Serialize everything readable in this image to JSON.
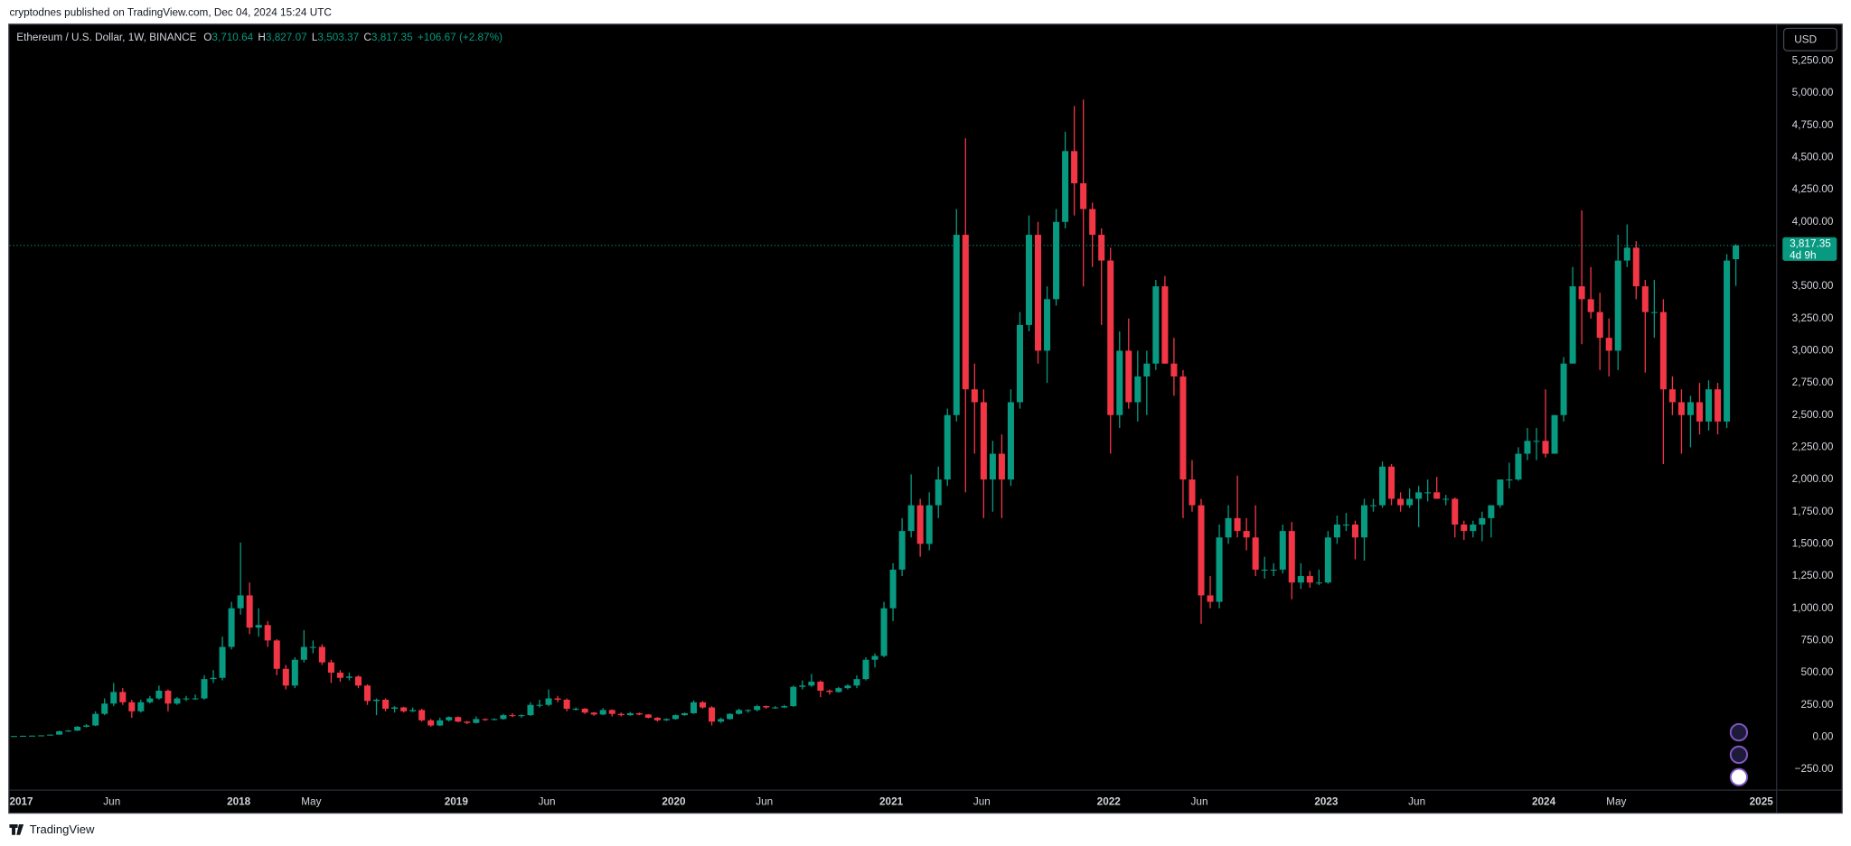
{
  "published": "cryptodnes published on TradingView.com, Dec 04, 2024 15:24 UTC",
  "footer": "TradingView",
  "chart_data": {
    "type": "candlestick",
    "title": "Ethereum / U.S. Dollar, 1W, BINANCE",
    "ohlc_legend": [
      {
        "key": "O",
        "value": "3,710.64"
      },
      {
        "key": "H",
        "value": "3,827.07"
      },
      {
        "key": "L",
        "value": "3,503.37"
      },
      {
        "key": "C",
        "value": "3,817.35"
      }
    ],
    "change": "+106.67 (+2.87%)",
    "currency": "USD",
    "last_price_label": "3,817.35",
    "countdown": "4d 9h",
    "up_color": "#089981",
    "down_color": "#f23645",
    "grid": false,
    "xlim": [
      0,
      195
    ],
    "xticks": [
      {
        "value": 0,
        "label": "2017"
      },
      {
        "value": 10,
        "label": "Jun"
      },
      {
        "value": 24,
        "label": "2018"
      },
      {
        "value": 32,
        "label": "May"
      },
      {
        "value": 48,
        "label": "2019"
      },
      {
        "value": 58,
        "label": "Jun"
      },
      {
        "value": 72,
        "label": "2020"
      },
      {
        "value": 82,
        "label": "Jun"
      },
      {
        "value": 96,
        "label": "2021"
      },
      {
        "value": 106,
        "label": "Jun"
      },
      {
        "value": 120,
        "label": "2022"
      },
      {
        "value": 130,
        "label": "Jun"
      },
      {
        "value": 144,
        "label": "2023"
      },
      {
        "value": 154,
        "label": "Jun"
      },
      {
        "value": 168,
        "label": "2024"
      },
      {
        "value": 176,
        "label": "May"
      },
      {
        "value": 192,
        "label": "2025"
      }
    ],
    "ylim": [
      -595,
      5540
    ],
    "yticks": [
      {
        "value": -250,
        "label": "−250.00"
      },
      {
        "value": 0,
        "label": "0.00"
      },
      {
        "value": 250,
        "label": "250.00"
      },
      {
        "value": 500,
        "label": "500.00"
      },
      {
        "value": 750,
        "label": "750.00"
      },
      {
        "value": 1000,
        "label": "1,000.00"
      },
      {
        "value": 1250,
        "label": "1,250.00"
      },
      {
        "value": 1500,
        "label": "1,500.00"
      },
      {
        "value": 1750,
        "label": "1,750.00"
      },
      {
        "value": 2000,
        "label": "2,000.00"
      },
      {
        "value": 2250,
        "label": "2,250.00"
      },
      {
        "value": 2500,
        "label": "2,500.00"
      },
      {
        "value": 2750,
        "label": "2,750.00"
      },
      {
        "value": 3000,
        "label": "3,000.00"
      },
      {
        "value": 3250,
        "label": "3,250.00"
      },
      {
        "value": 3500,
        "label": "3,500.00"
      },
      {
        "value": 3750,
        "label": "3,750.00"
      },
      {
        "value": 4000,
        "label": "4,000.00"
      },
      {
        "value": 4250,
        "label": "4,250.00"
      },
      {
        "value": 4500,
        "label": "4,500.00"
      },
      {
        "value": 4750,
        "label": "4,750.00"
      },
      {
        "value": 5000,
        "label": "5,000.00"
      },
      {
        "value": 5250,
        "label": "5,250.00"
      }
    ],
    "ohlc": [
      [
        8,
        9,
        7,
        8
      ],
      [
        8,
        10,
        8,
        10
      ],
      [
        10,
        12,
        10,
        11
      ],
      [
        11,
        14,
        11,
        13
      ],
      [
        13,
        20,
        12,
        19
      ],
      [
        19,
        50,
        18,
        45
      ],
      [
        45,
        55,
        40,
        50
      ],
      [
        50,
        85,
        47,
        80
      ],
      [
        80,
        100,
        75,
        90
      ],
      [
        90,
        200,
        85,
        180
      ],
      [
        180,
        300,
        170,
        260
      ],
      [
        260,
        420,
        240,
        350
      ],
      [
        350,
        380,
        250,
        270
      ],
      [
        270,
        290,
        150,
        200
      ],
      [
        200,
        290,
        190,
        270
      ],
      [
        270,
        320,
        260,
        300
      ],
      [
        300,
        400,
        290,
        360
      ],
      [
        360,
        370,
        200,
        260
      ],
      [
        260,
        310,
        250,
        300
      ],
      [
        300,
        320,
        280,
        300
      ],
      [
        300,
        330,
        290,
        300
      ],
      [
        300,
        480,
        290,
        450
      ],
      [
        450,
        520,
        420,
        460
      ],
      [
        460,
        780,
        440,
        700
      ],
      [
        700,
        1050,
        680,
        1000
      ],
      [
        1000,
        1510,
        950,
        1100
      ],
      [
        1100,
        1200,
        800,
        850
      ],
      [
        850,
        1000,
        780,
        870
      ],
      [
        870,
        900,
        700,
        750
      ],
      [
        750,
        760,
        480,
        530
      ],
      [
        530,
        560,
        370,
        400
      ],
      [
        400,
        620,
        380,
        600
      ],
      [
        600,
        830,
        580,
        700
      ],
      [
        700,
        750,
        650,
        700
      ],
      [
        700,
        720,
        560,
        580
      ],
      [
        580,
        600,
        420,
        500
      ],
      [
        500,
        520,
        430,
        460
      ],
      [
        460,
        500,
        440,
        470
      ],
      [
        470,
        480,
        380,
        400
      ],
      [
        400,
        410,
        250,
        280
      ],
      [
        280,
        300,
        170,
        290
      ],
      [
        290,
        300,
        200,
        220
      ],
      [
        220,
        240,
        190,
        230
      ],
      [
        230,
        235,
        190,
        200
      ],
      [
        200,
        230,
        195,
        210
      ],
      [
        210,
        220,
        120,
        130
      ],
      [
        130,
        140,
        80,
        90
      ],
      [
        90,
        150,
        85,
        130
      ],
      [
        130,
        160,
        120,
        155
      ],
      [
        155,
        160,
        115,
        120
      ],
      [
        120,
        125,
        100,
        110
      ],
      [
        110,
        160,
        105,
        140
      ],
      [
        140,
        145,
        125,
        135
      ],
      [
        135,
        145,
        130,
        140
      ],
      [
        140,
        180,
        135,
        170
      ],
      [
        170,
        185,
        155,
        165
      ],
      [
        165,
        175,
        150,
        170
      ],
      [
        170,
        270,
        165,
        250
      ],
      [
        250,
        290,
        230,
        250
      ],
      [
        250,
        370,
        240,
        300
      ],
      [
        300,
        320,
        270,
        290
      ],
      [
        290,
        300,
        200,
        220
      ],
      [
        220,
        230,
        205,
        220
      ],
      [
        220,
        225,
        180,
        190
      ],
      [
        190,
        195,
        165,
        175
      ],
      [
        175,
        225,
        170,
        210
      ],
      [
        210,
        215,
        160,
        180
      ],
      [
        180,
        190,
        160,
        170
      ],
      [
        170,
        195,
        165,
        185
      ],
      [
        185,
        190,
        170,
        175
      ],
      [
        175,
        178,
        145,
        150
      ],
      [
        150,
        155,
        120,
        130
      ],
      [
        130,
        145,
        125,
        140
      ],
      [
        140,
        175,
        135,
        170
      ],
      [
        170,
        190,
        165,
        185
      ],
      [
        185,
        285,
        180,
        270
      ],
      [
        270,
        280,
        220,
        230
      ],
      [
        230,
        240,
        90,
        120
      ],
      [
        120,
        150,
        110,
        140
      ],
      [
        140,
        185,
        135,
        180
      ],
      [
        180,
        220,
        175,
        210
      ],
      [
        210,
        215,
        190,
        210
      ],
      [
        210,
        250,
        200,
        240
      ],
      [
        240,
        245,
        220,
        230
      ],
      [
        230,
        240,
        220,
        230
      ],
      [
        230,
        250,
        225,
        240
      ],
      [
        240,
        400,
        235,
        390
      ],
      [
        390,
        440,
        370,
        400
      ],
      [
        400,
        490,
        390,
        430
      ],
      [
        430,
        440,
        310,
        360
      ],
      [
        360,
        370,
        330,
        350
      ],
      [
        350,
        390,
        345,
        380
      ],
      [
        380,
        410,
        370,
        400
      ],
      [
        400,
        480,
        380,
        450
      ],
      [
        450,
        620,
        440,
        600
      ],
      [
        600,
        650,
        540,
        630
      ],
      [
        630,
        1050,
        620,
        1000
      ],
      [
        1000,
        1350,
        900,
        1300
      ],
      [
        1300,
        1700,
        1250,
        1600
      ],
      [
        1600,
        2040,
        1550,
        1800
      ],
      [
        1800,
        1850,
        1400,
        1500
      ],
      [
        1500,
        1900,
        1450,
        1800
      ],
      [
        1800,
        2100,
        1700,
        2000
      ],
      [
        2000,
        2550,
        1950,
        2500
      ],
      [
        2500,
        4100,
        2450,
        3900
      ],
      [
        3900,
        4650,
        1900,
        2700
      ],
      [
        2700,
        2900,
        2200,
        2600
      ],
      [
        2600,
        2700,
        1700,
        2000
      ],
      [
        2000,
        2300,
        1750,
        2200
      ],
      [
        2200,
        2350,
        1700,
        2000
      ],
      [
        2000,
        2700,
        1950,
        2600
      ],
      [
        2600,
        3300,
        2550,
        3200
      ],
      [
        3200,
        4050,
        3150,
        3900
      ],
      [
        3900,
        4000,
        2900,
        3000
      ],
      [
        3000,
        3500,
        2750,
        3400
      ],
      [
        3400,
        4100,
        3350,
        4000
      ],
      [
        4000,
        4700,
        3950,
        4550
      ],
      [
        4550,
        4900,
        4050,
        4300
      ],
      [
        4300,
        4950,
        3500,
        4100
      ],
      [
        4100,
        4150,
        3650,
        3900
      ],
      [
        3900,
        3950,
        3200,
        3700
      ],
      [
        3700,
        3800,
        2200,
        2500
      ],
      [
        2500,
        3150,
        2400,
        3000
      ],
      [
        3000,
        3250,
        2550,
        2600
      ],
      [
        2600,
        3000,
        2450,
        2800
      ],
      [
        2800,
        3000,
        2500,
        2900
      ],
      [
        2900,
        3550,
        2850,
        3500
      ],
      [
        3500,
        3580,
        2900,
        2900
      ],
      [
        2900,
        3100,
        2650,
        2800
      ],
      [
        2800,
        2850,
        1700,
        2000
      ],
      [
        2000,
        2150,
        1750,
        1800
      ],
      [
        1800,
        1850,
        880,
        1100
      ],
      [
        1100,
        1250,
        1000,
        1050
      ],
      [
        1050,
        1650,
        1000,
        1550
      ],
      [
        1550,
        1800,
        1500,
        1700
      ],
      [
        1700,
        2030,
        1550,
        1600
      ],
      [
        1600,
        1700,
        1450,
        1550
      ],
      [
        1550,
        1800,
        1250,
        1300
      ],
      [
        1300,
        1400,
        1230,
        1300
      ],
      [
        1300,
        1350,
        1250,
        1300
      ],
      [
        1300,
        1650,
        1270,
        1600
      ],
      [
        1600,
        1670,
        1070,
        1200
      ],
      [
        1200,
        1350,
        1150,
        1250
      ],
      [
        1250,
        1290,
        1160,
        1200
      ],
      [
        1200,
        1300,
        1180,
        1200
      ],
      [
        1200,
        1600,
        1190,
        1550
      ],
      [
        1550,
        1720,
        1500,
        1650
      ],
      [
        1650,
        1740,
        1600,
        1650
      ],
      [
        1650,
        1680,
        1380,
        1550
      ],
      [
        1550,
        1850,
        1370,
        1800
      ],
      [
        1800,
        1850,
        1750,
        1800
      ],
      [
        1800,
        2140,
        1780,
        2100
      ],
      [
        2100,
        2120,
        1800,
        1850
      ],
      [
        1850,
        1900,
        1750,
        1800
      ],
      [
        1800,
        1930,
        1780,
        1850
      ],
      [
        1850,
        1950,
        1630,
        1900
      ],
      [
        1900,
        2000,
        1830,
        1900
      ],
      [
        1900,
        2020,
        1850,
        1850
      ],
      [
        1850,
        1880,
        1800,
        1850
      ],
      [
        1850,
        1860,
        1550,
        1650
      ],
      [
        1650,
        1680,
        1530,
        1600
      ],
      [
        1600,
        1680,
        1550,
        1650
      ],
      [
        1650,
        1750,
        1520,
        1700
      ],
      [
        1700,
        1800,
        1550,
        1800
      ],
      [
        1800,
        2000,
        1780,
        2000
      ],
      [
        2000,
        2130,
        1930,
        2000
      ],
      [
        2000,
        2250,
        1990,
        2200
      ],
      [
        2200,
        2400,
        2150,
        2300
      ],
      [
        2300,
        2400,
        2150,
        2300
      ],
      [
        2300,
        2700,
        2170,
        2200
      ],
      [
        2200,
        2500,
        2200,
        2500
      ],
      [
        2500,
        2950,
        2450,
        2900
      ],
      [
        2900,
        3650,
        2900,
        3500
      ],
      [
        3500,
        4090,
        3050,
        3400
      ],
      [
        3400,
        3650,
        3250,
        3300
      ],
      [
        3300,
        3450,
        2850,
        3100
      ],
      [
        3100,
        3250,
        2800,
        3000
      ],
      [
        3000,
        3900,
        2850,
        3700
      ],
      [
        3700,
        3980,
        3650,
        3800
      ],
      [
        3800,
        3850,
        3400,
        3500
      ],
      [
        3500,
        3550,
        2830,
        3300
      ],
      [
        3300,
        3550,
        3100,
        3300
      ],
      [
        3300,
        3400,
        2120,
        2700
      ],
      [
        2700,
        2800,
        2500,
        2600
      ],
      [
        2600,
        2700,
        2200,
        2500
      ],
      [
        2500,
        2650,
        2250,
        2600
      ],
      [
        2600,
        2750,
        2350,
        2450
      ],
      [
        2450,
        2770,
        2380,
        2700
      ],
      [
        2700,
        2750,
        2350,
        2450
      ],
      [
        2450,
        3750,
        2400,
        3700
      ],
      [
        3710.64,
        3827.07,
        3503.37,
        3817.35
      ]
    ]
  }
}
